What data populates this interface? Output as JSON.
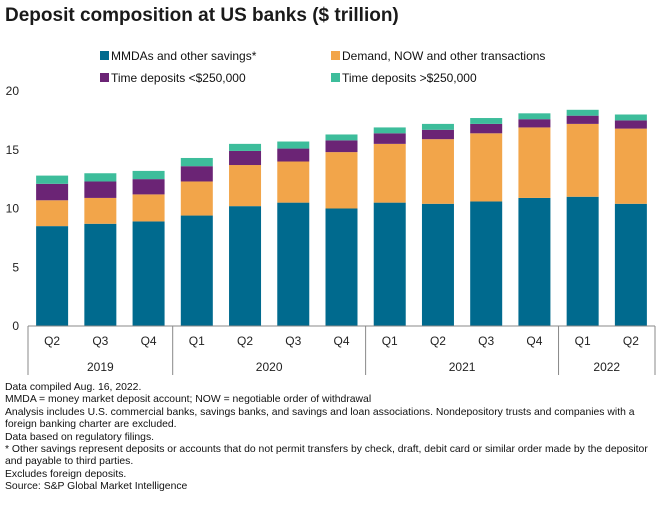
{
  "title": "Deposit composition at US banks ($ trillion)",
  "chart_data": {
    "type": "bar",
    "stacked": true,
    "categories": [
      "Q2",
      "Q3",
      "Q4",
      "Q1",
      "Q2",
      "Q3",
      "Q4",
      "Q1",
      "Q2",
      "Q3",
      "Q4",
      "Q1",
      "Q2"
    ],
    "year_groups": [
      {
        "label": "2019",
        "count": 3
      },
      {
        "label": "2020",
        "count": 4
      },
      {
        "label": "2021",
        "count": 4
      },
      {
        "label": "2022",
        "count": 2
      }
    ],
    "series": [
      {
        "name": "MMDAs and other savings*",
        "color": "#006a8e",
        "values": [
          8.5,
          8.7,
          8.9,
          9.4,
          10.2,
          10.5,
          10.0,
          10.5,
          10.4,
          10.6,
          10.9,
          11.0,
          10.4
        ]
      },
      {
        "name": "Demand, NOW and other transactions",
        "color": "#f2a54a",
        "values": [
          2.2,
          2.2,
          2.3,
          2.9,
          3.5,
          3.5,
          4.8,
          5.0,
          5.5,
          5.8,
          6.0,
          6.2,
          6.4
        ]
      },
      {
        "name": "Time deposits <$250,000",
        "color": "#6b2475",
        "values": [
          1.4,
          1.4,
          1.3,
          1.3,
          1.2,
          1.1,
          1.0,
          0.9,
          0.8,
          0.8,
          0.7,
          0.7,
          0.7
        ]
      },
      {
        "name": "Time deposits >$250,000",
        "color": "#3dbd9b",
        "values": [
          0.7,
          0.7,
          0.7,
          0.7,
          0.6,
          0.6,
          0.5,
          0.5,
          0.5,
          0.5,
          0.5,
          0.5,
          0.5
        ]
      }
    ],
    "yticks": [
      0,
      5,
      10,
      15,
      20
    ],
    "ylim": [
      0,
      20
    ],
    "legend_position": "top",
    "grid": false
  },
  "notes": [
    "Data compiled Aug. 16, 2022.",
    "MMDA = money market deposit account; NOW = negotiable order of withdrawal",
    "Analysis includes U.S. commercial banks, savings banks, and savings and loan associations. Nondepository trusts and companies with a foreign banking charter are excluded.",
    "Data based on regulatory filings.",
    "* Other savings represent deposits or accounts that do not permit transfers by check, draft, debit card or similar order made by the depositor and payable to third parties.",
    "Excludes foreign deposits.",
    "Source: S&P Global Market Intelligence"
  ]
}
